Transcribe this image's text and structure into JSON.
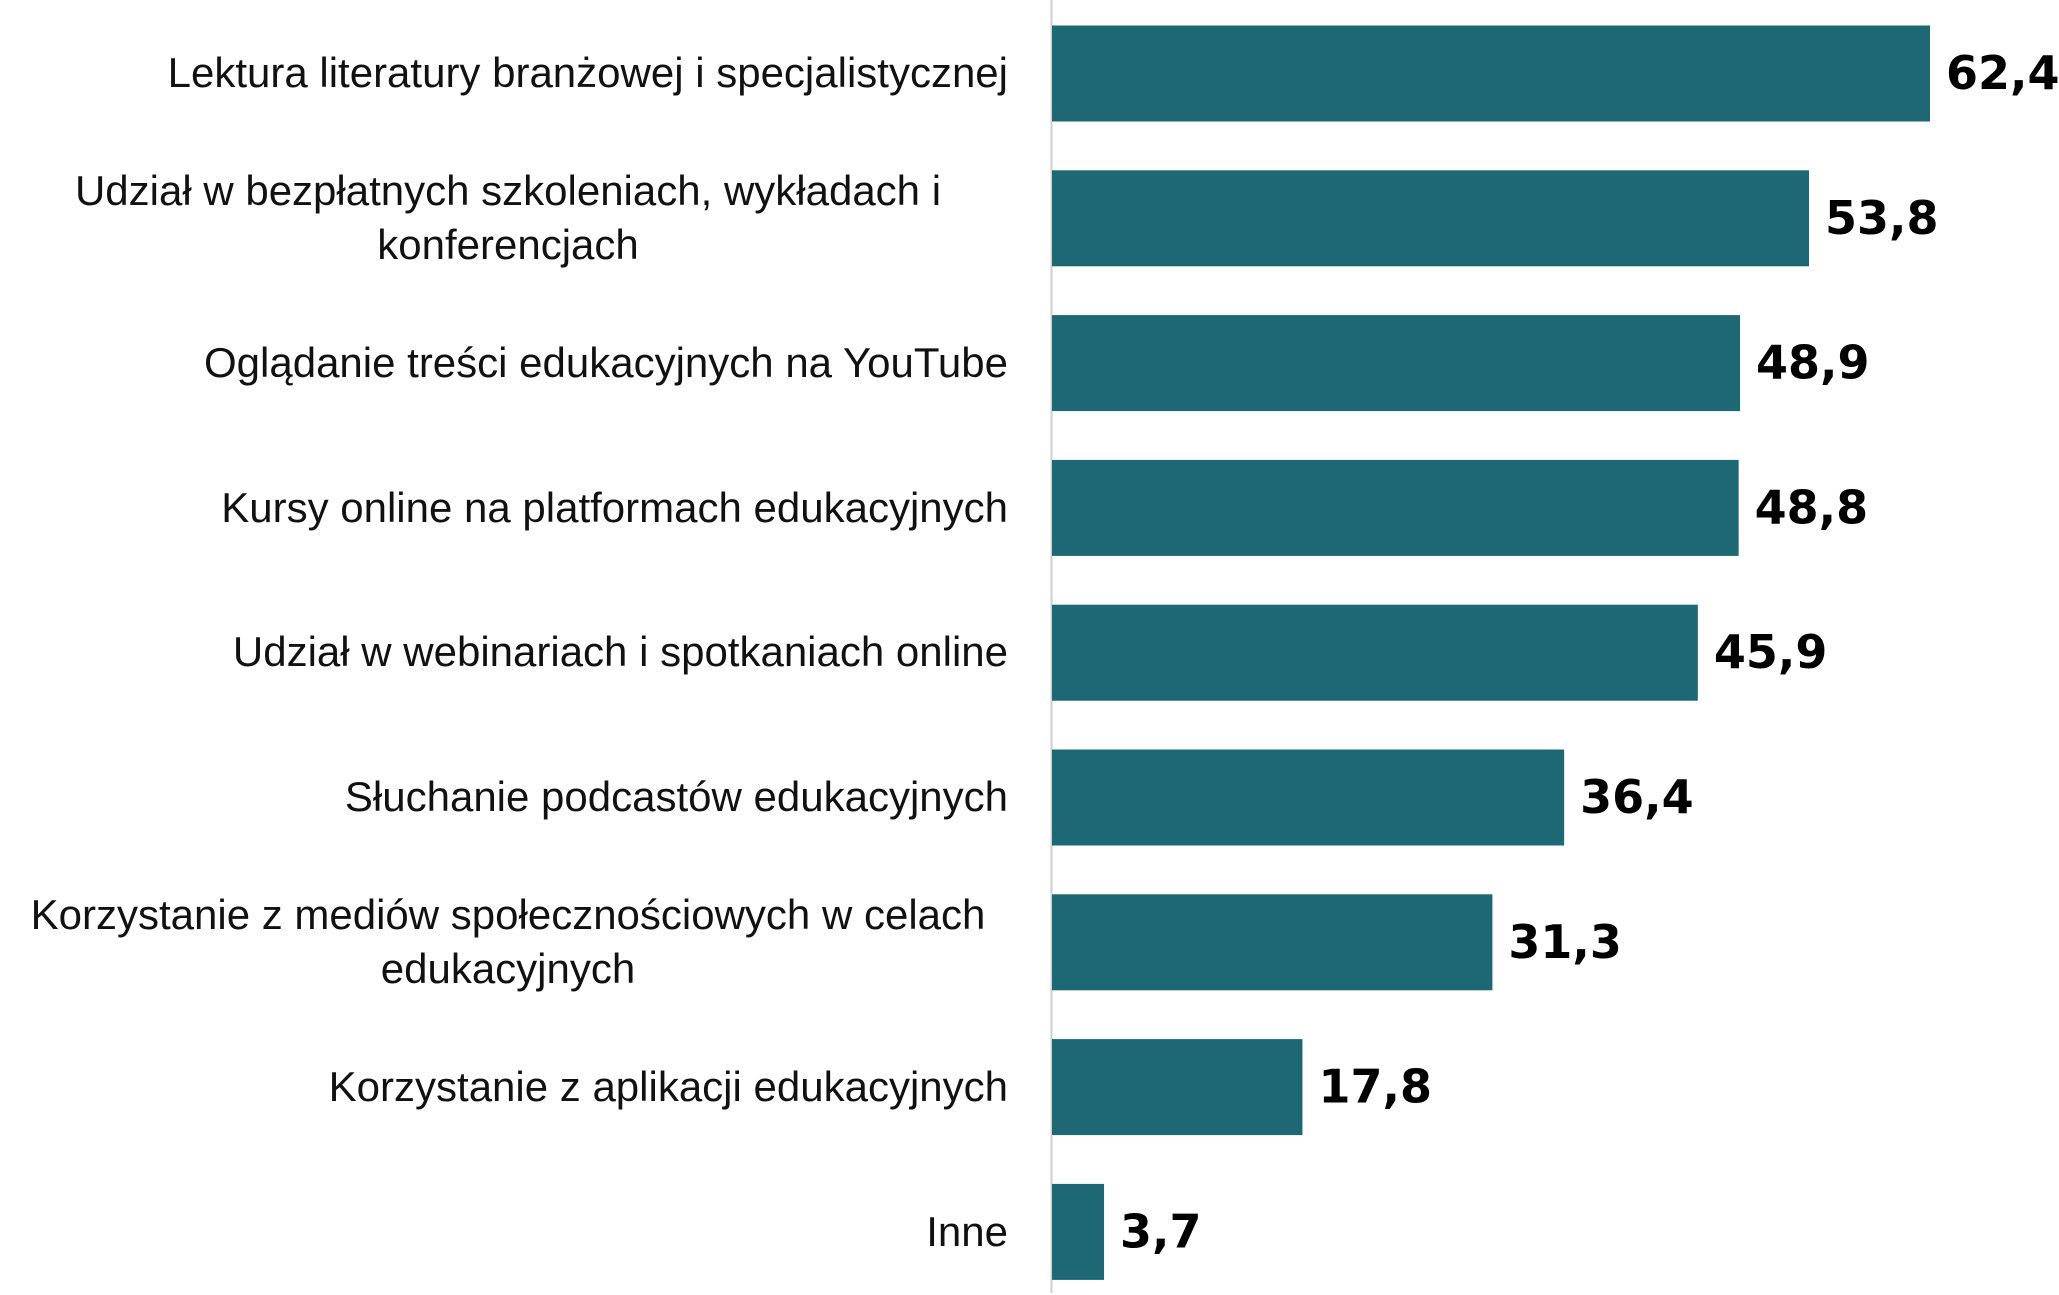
{
  "chart_data": {
    "type": "bar",
    "orientation": "horizontal",
    "categories": [
      "Lektura literatury branżowej i specjalistycznej",
      "Udział w bezpłatnych szkoleniach, wykładach i konferencjach",
      "Oglądanie treści edukacyjnych na YouTube",
      "Kursy online na platformach edukacyjnych",
      "Udział w webinariach i spotkaniach online",
      "Słuchanie podcastów edukacyjnych",
      "Korzystanie z mediów społecznościowych w celach edukacyjnych",
      "Korzystanie z aplikacji edukacyjnych",
      "Inne"
    ],
    "values": [
      62.4,
      53.8,
      48.9,
      48.8,
      45.9,
      36.4,
      31.3,
      17.8,
      3.7
    ],
    "value_labels": [
      "62,4",
      "53,8",
      "48,9",
      "48,8",
      "45,9",
      "36,4",
      "31,3",
      "17,8",
      "3,7"
    ],
    "color": "#1e6774"
  }
}
